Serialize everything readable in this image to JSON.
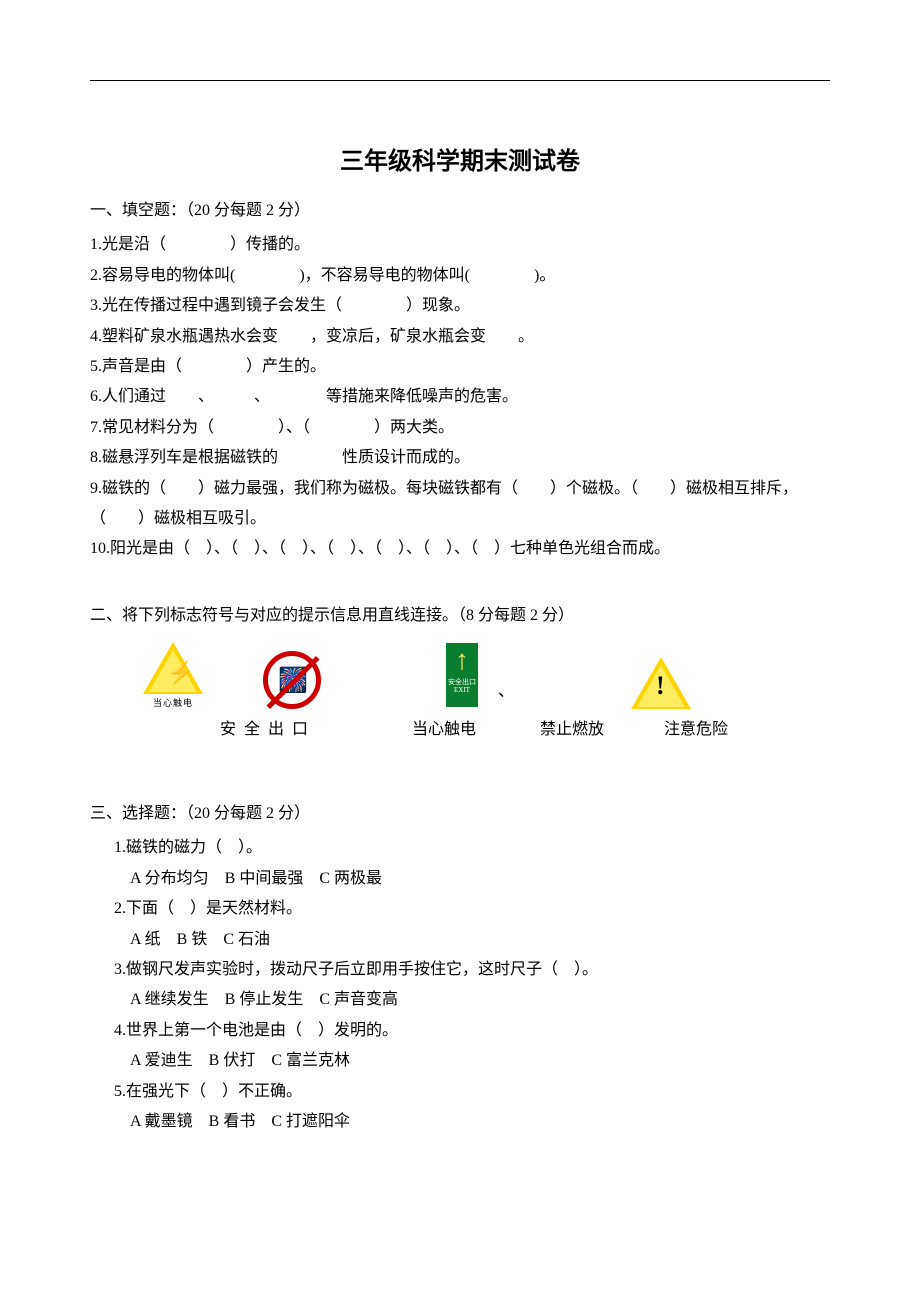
{
  "title": "三年级科学期末测试卷",
  "section1": {
    "header": "一、填空题：（20 分每题 2 分）",
    "q1": "1.光是沿（　　　　）传播的。",
    "q2": "2.容易导电的物体叫(　　　　)，不容易导电的物体叫(　　　　)。",
    "q3": "3.光在传播过程中遇到镜子会发生（　　　　）现象。",
    "q4": "4.塑料矿泉水瓶遇热水会变　　，变凉后，矿泉水瓶会变　　。",
    "q5": "5.声音是由（　　　　）产生的。",
    "q6": "6.人们通过　　、　　　、　　　　等措施来降低噪声的危害。",
    "q7": "7.常见材料分为（　　　　）、（　　　　）两大类。",
    "q8": "8.磁悬浮列车是根据磁铁的　　　　性质设计而成的。",
    "q9": "9.磁铁的（　　）磁力最强，我们称为磁极。每块磁铁都有（　　）个磁极。（　　）磁极相互排斥，（　　）磁极相互吸引。",
    "q10": "10.阳光是由（　）、（　）、（　）、（　）、（　）、（　）、（　）七种单色光组合而成。"
  },
  "section2": {
    "header": "二、将下列标志符号与对应的提示信息用直线连接。（8 分每题 2 分）",
    "sign_electric_caption": "当心触电",
    "exit_text": "安全出口\nEXIT",
    "comma": "、",
    "label_exit": "安全出口",
    "label_electric": "当心触电",
    "label_nofire": "禁止燃放",
    "label_danger": "注意危险",
    "colors": {
      "triangle_outer": "#ffd400",
      "triangle_inner": "#ffec60",
      "prohibit_red": "#cc0000",
      "exit_green": "#0a7d2f",
      "exit_arrow": "#f5e050"
    }
  },
  "section3": {
    "header": "三、选择题：（20 分每题 2 分）",
    "q1": "1.磁铁的磁力（　）。",
    "q1a": "A 分布均匀　B 中间最强　C 两极最",
    "q2": "2.下面（　）是天然材料。",
    "q2a": "A 纸　B 铁　C 石油",
    "q3": "3.做钢尺发声实验时，拨动尺子后立即用手按住它，这时尺子（　）。",
    "q3a": "A 继续发生　B 停止发生　C 声音变高",
    "q4": "4.世界上第一个电池是由（　）发明的。",
    "q4a": "A 爱迪生　B 伏打　C 富兰克林",
    "q5": "5.在强光下（　）不正确。",
    "q5a": "A 戴墨镜　B 看书　C 打遮阳伞"
  }
}
